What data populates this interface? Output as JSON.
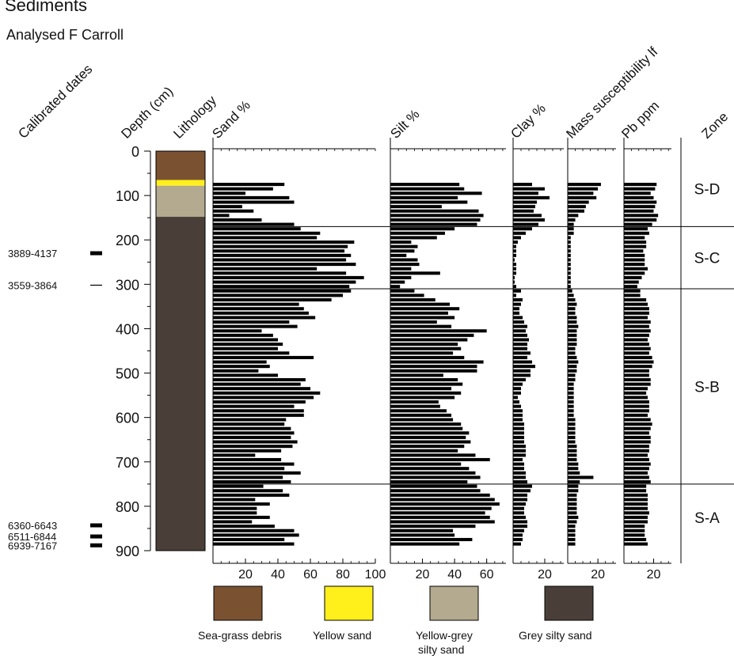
{
  "chart_data": {
    "type": "bar",
    "title": "Sediments",
    "subtitle": "Analysed F Carroll",
    "depth_axis": {
      "label": "Depth (cm)",
      "range": [
        0,
        900
      ],
      "ticks": [
        "0",
        "100",
        "200",
        "300",
        "400",
        "500",
        "600",
        "700",
        "800",
        "900"
      ]
    },
    "calibrated_dates": {
      "label": "Calibrated dates",
      "items": [
        {
          "text": "3889-4137",
          "depth": 230
        },
        {
          "text": "3559-3864",
          "depth": 302
        },
        {
          "text": "6360-6643",
          "depth": 843
        },
        {
          "text": "6511-6844",
          "depth": 868
        },
        {
          "text": "6939-7167",
          "depth": 888
        }
      ]
    },
    "lithology": {
      "label": "Lithology",
      "units": [
        {
          "name": "Sea-grass debris",
          "top": 0,
          "bottom": 65,
          "color": "#7a5232"
        },
        {
          "name": "Yellow sand",
          "top": 65,
          "bottom": 78,
          "color": "#ffef1a"
        },
        {
          "name": "Yellow-grey silty sand",
          "top": 78,
          "bottom": 148,
          "color": "#b3aa8f"
        },
        {
          "name": "Grey silty sand",
          "top": 148,
          "bottom": 900,
          "color": "#4a3f38"
        }
      ]
    },
    "depths": [
      75,
      85,
      95,
      105,
      115,
      125,
      135,
      145,
      155,
      165,
      175,
      185,
      195,
      205,
      215,
      225,
      235,
      245,
      255,
      265,
      275,
      285,
      295,
      305,
      315,
      325,
      335,
      345,
      355,
      365,
      375,
      385,
      395,
      405,
      415,
      425,
      435,
      445,
      455,
      465,
      475,
      485,
      495,
      505,
      515,
      525,
      535,
      545,
      555,
      565,
      575,
      585,
      595,
      605,
      615,
      625,
      635,
      645,
      655,
      665,
      675,
      685,
      695,
      705,
      715,
      725,
      735,
      745,
      755,
      765,
      775,
      785,
      795,
      805,
      815,
      825,
      835,
      845,
      855,
      865,
      875,
      885
    ],
    "series": [
      {
        "name": "Sand %",
        "ticks": [
          "20",
          "40",
          "60",
          "80",
          "100"
        ],
        "xlim": [
          0,
          100
        ],
        "values": [
          44,
          37,
          20,
          47,
          50,
          18,
          25,
          10,
          30,
          50,
          54,
          66,
          64,
          87,
          83,
          81,
          85,
          82,
          88,
          64,
          82,
          93,
          88,
          84,
          85,
          80,
          73,
          53,
          56,
          59,
          63,
          47,
          52,
          30,
          37,
          40,
          43,
          40,
          47,
          62,
          33,
          35,
          28,
          40,
          57,
          54,
          60,
          66,
          62,
          57,
          50,
          56,
          56,
          45,
          44,
          48,
          50,
          48,
          52,
          49,
          42,
          26,
          42,
          50,
          44,
          54,
          43,
          48,
          31,
          43,
          47,
          26,
          35,
          27,
          27,
          35,
          24,
          38,
          50,
          53,
          44,
          50
        ]
      },
      {
        "name": "Silt %",
        "ticks": [
          "20",
          "40",
          "60"
        ],
        "xlim": [
          0,
          72
        ],
        "values": [
          43,
          46,
          57,
          42,
          48,
          32,
          55,
          58,
          56,
          54,
          40,
          34,
          29,
          13,
          17,
          15,
          10,
          17,
          18,
          13,
          31,
          13,
          9,
          6,
          15,
          21,
          28,
          37,
          43,
          36,
          40,
          29,
          38,
          60,
          52,
          48,
          42,
          44,
          39,
          46,
          58,
          54,
          54,
          33,
          42,
          45,
          38,
          44,
          40,
          30,
          31,
          35,
          38,
          39,
          44,
          45,
          49,
          47,
          50,
          46,
          42,
          53,
          62,
          44,
          49,
          53,
          56,
          48,
          54,
          56,
          62,
          65,
          68,
          63,
          59,
          62,
          65,
          53,
          39,
          40,
          51,
          43
        ]
      },
      {
        "name": "Clay %",
        "ticks": [
          "20"
        ],
        "xlim": [
          0,
          32
        ],
        "values": [
          12,
          20,
          16,
          23,
          15,
          14,
          13,
          18,
          20,
          16,
          12,
          8,
          5,
          3,
          2,
          2,
          2,
          1,
          2,
          2,
          2,
          1,
          1,
          2,
          5,
          2,
          6,
          5,
          4,
          4,
          6,
          7,
          9,
          8,
          9,
          10,
          9,
          9,
          11,
          9,
          12,
          14,
          11,
          11,
          8,
          6,
          5,
          5,
          3,
          4,
          5,
          6,
          6,
          6,
          7,
          7,
          7,
          7,
          7,
          8,
          8,
          8,
          6,
          7,
          7,
          8,
          8,
          9,
          12,
          11,
          9,
          9,
          8,
          7,
          7,
          8,
          9,
          9,
          7,
          6,
          6,
          5
        ]
      },
      {
        "name": "Mass susceptibility lf",
        "ticks": [
          "20"
        ],
        "xlim": [
          0,
          32
        ],
        "values": [
          22,
          20,
          17,
          19,
          14,
          12,
          11,
          7,
          5,
          4,
          4,
          4,
          2,
          2,
          2,
          2,
          2,
          2,
          2,
          2,
          2,
          2,
          2,
          2,
          3,
          4,
          5,
          6,
          5,
          5,
          6,
          6,
          7,
          6,
          6,
          6,
          6,
          5,
          5,
          6,
          7,
          6,
          6,
          5,
          5,
          4,
          4,
          4,
          4,
          4,
          4,
          4,
          4,
          5,
          5,
          5,
          5,
          5,
          5,
          6,
          6,
          6,
          6,
          7,
          7,
          8,
          17,
          8,
          7,
          7,
          6,
          6,
          6,
          6,
          6,
          7,
          6,
          5,
          5,
          5,
          5,
          5
        ]
      },
      {
        "name": "Pb ppm",
        "ticks": [
          "20"
        ],
        "xlim": [
          0,
          32
        ],
        "values": [
          22,
          21,
          18,
          20,
          22,
          21,
          20,
          23,
          22,
          19,
          16,
          17,
          14,
          15,
          15,
          13,
          14,
          14,
          14,
          16,
          14,
          12,
          10,
          9,
          11,
          11,
          15,
          16,
          17,
          17,
          16,
          18,
          17,
          18,
          17,
          16,
          17,
          18,
          17,
          19,
          20,
          19,
          17,
          17,
          18,
          18,
          16,
          15,
          16,
          17,
          17,
          17,
          16,
          18,
          19,
          18,
          17,
          18,
          18,
          17,
          17,
          16,
          17,
          18,
          17,
          16,
          17,
          18,
          15,
          15,
          16,
          16,
          16,
          16,
          17,
          16,
          16,
          14,
          14,
          14,
          15,
          16
        ]
      }
    ],
    "zones": {
      "label": "Zone",
      "items": [
        {
          "name": "S-D",
          "top": 0,
          "bottom": 170
        },
        {
          "name": "S-C",
          "top": 170,
          "bottom": 310
        },
        {
          "name": "S-B",
          "top": 310,
          "bottom": 750
        },
        {
          "name": "S-A",
          "top": 750,
          "bottom": 900
        }
      ]
    },
    "legend": {
      "items": [
        {
          "label": "Sea-grass debris",
          "color": "#7a5232"
        },
        {
          "label": "Yellow sand",
          "color": "#ffef1a"
        },
        {
          "label": "Yellow-grey silty sand",
          "color": "#b3aa8f"
        },
        {
          "label": "Grey silty sand",
          "color": "#4a3f38"
        }
      ]
    },
    "colors": {
      "bars": "#000000",
      "frame": "#000000"
    }
  }
}
